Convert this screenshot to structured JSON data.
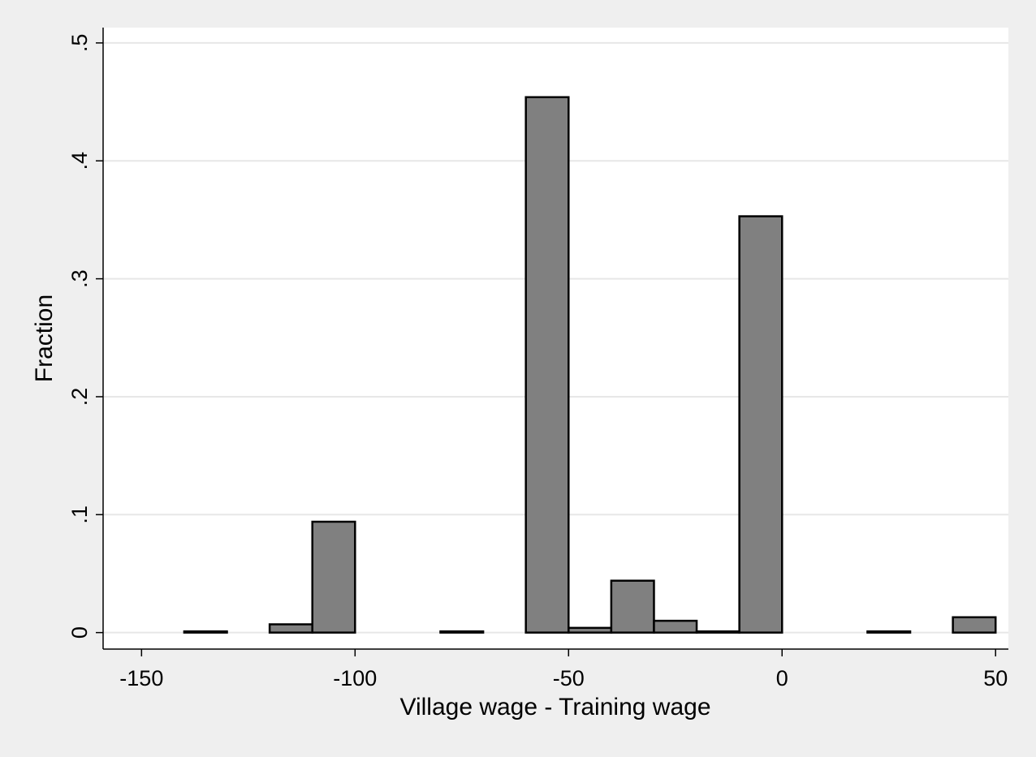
{
  "chart_data": {
    "type": "bar",
    "title": "",
    "xlabel": "Village wage - Training wage",
    "ylabel": "Fraction",
    "xlim": [
      -159,
      53
    ],
    "ylim": [
      -0.014,
      0.513
    ],
    "grid": true,
    "x_ticks": [
      {
        "value": -150,
        "label": "-150"
      },
      {
        "value": -100,
        "label": "-100"
      },
      {
        "value": -50,
        "label": "-50"
      },
      {
        "value": 0,
        "label": "0"
      },
      {
        "value": 50,
        "label": "50"
      }
    ],
    "y_ticks": [
      {
        "value": 0,
        "label": "0"
      },
      {
        "value": 0.1,
        "label": ".1"
      },
      {
        "value": 0.2,
        "label": ".2"
      },
      {
        "value": 0.3,
        "label": ".3"
      },
      {
        "value": 0.4,
        "label": ".4"
      },
      {
        "value": 0.5,
        "label": ".5"
      }
    ],
    "bins": [
      {
        "from": -140,
        "to": -130,
        "value": 0.001
      },
      {
        "from": -120,
        "to": -110,
        "value": 0.007
      },
      {
        "from": -110,
        "to": -100,
        "value": 0.094
      },
      {
        "from": -80,
        "to": -70,
        "value": 0.001
      },
      {
        "from": -60,
        "to": -50,
        "value": 0.454
      },
      {
        "from": -50,
        "to": -40,
        "value": 0.004
      },
      {
        "from": -40,
        "to": -30,
        "value": 0.044
      },
      {
        "from": -30,
        "to": -20,
        "value": 0.01
      },
      {
        "from": -20,
        "to": -10,
        "value": 0.001
      },
      {
        "from": -10,
        "to": 0,
        "value": 0.353
      },
      {
        "from": 20,
        "to": 30,
        "value": 0.001
      },
      {
        "from": 40,
        "to": 50,
        "value": 0.013
      }
    ],
    "bar_color": "#808080",
    "bar_edge_color": "#000000",
    "grid_color": "#e7e7e7",
    "plot_background": "#ffffff",
    "page_background": "#efefef"
  }
}
